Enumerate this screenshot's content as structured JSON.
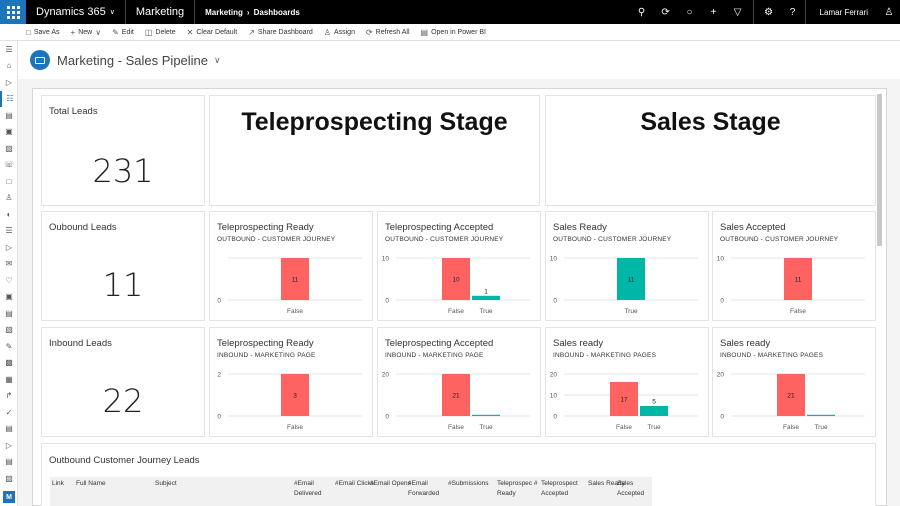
{
  "topbar": {
    "app_name": "Dynamics 365",
    "module": "Marketing",
    "breadcrumb": [
      "Marketing",
      "Dashboards"
    ],
    "user": "Lamar Ferrari"
  },
  "commands": [
    "Save As",
    "New",
    "Edit",
    "Delete",
    "Clear Default",
    "Share Dashboard",
    "Assign",
    "Refresh All",
    "Open in Power BI"
  ],
  "header": {
    "title": "Marketing - Sales Pipeline"
  },
  "tiles": {
    "total_leads": {
      "title": "Total Leads",
      "value": "231"
    },
    "outbound_leads": {
      "title": "Oubound Leads",
      "value": "11"
    },
    "inbound_leads": {
      "title": "Inbound Leads",
      "value": "22"
    },
    "stage_telep": "Teleprospecting Stage",
    "stage_sales": "Sales Stage"
  },
  "grid": {
    "title": "Outbound Customer Journey Leads",
    "columns": [
      "Link",
      "Full Name",
      "Subject",
      "#Email Delivered",
      "#Email Clicks",
      "#Email Opens",
      "#Email Forwarded",
      "#Submissions",
      "Teleprospec # Ready",
      "Teleprospect Accepted",
      "Sales Ready",
      "Sales Accepted"
    ]
  },
  "colors": {
    "red": "#ff6361",
    "teal": "#00b7a7",
    "accent": "#1b75bb"
  },
  "chart_data": [
    {
      "type": "bar",
      "title": "Teleprospecting Ready",
      "subtitle": "OUTBOUND - CUSTOMER JOURNEY",
      "categories": [
        "False"
      ],
      "values": [
        11
      ],
      "colors": [
        "#ff6361"
      ],
      "yticks": [
        "",
        "0"
      ],
      "ylim": [
        0,
        11
      ]
    },
    {
      "type": "bar",
      "title": "Teleprospecting Accepted",
      "subtitle": "OUTBOUND - CUSTOMER JOURNEY",
      "categories": [
        "False",
        "True"
      ],
      "values": [
        10,
        1
      ],
      "colors": [
        "#ff6361",
        "#00b7a7"
      ],
      "yticks": [
        "10",
        "0"
      ],
      "ylim": [
        0,
        10
      ]
    },
    {
      "type": "bar",
      "title": "Sales Ready",
      "subtitle": "OUTBOUND - CUSTOMER JOURNEY",
      "categories": [
        "True"
      ],
      "values": [
        11
      ],
      "colors": [
        "#00b7a7"
      ],
      "yticks": [
        "10",
        "0"
      ],
      "ylim": [
        0,
        11
      ]
    },
    {
      "type": "bar",
      "title": "Sales Accepted",
      "subtitle": "OUTBOUND - CUSTOMER JOURNEY",
      "categories": [
        "False"
      ],
      "values": [
        11
      ],
      "colors": [
        "#ff6361"
      ],
      "yticks": [
        "10",
        "0"
      ],
      "ylim": [
        0,
        11
      ]
    },
    {
      "type": "bar",
      "title": "Teleprospecting Ready",
      "subtitle": "INBOUND - MARKETING PAGE",
      "categories": [
        "False"
      ],
      "values": [
        3
      ],
      "colors": [
        "#ff6361"
      ],
      "yticks": [
        "2",
        "0"
      ],
      "ylim": [
        0,
        3
      ]
    },
    {
      "type": "bar",
      "title": "Teleprospecting Accepted",
      "subtitle": "INBOUND - MARKETING PAGE",
      "categories": [
        "False",
        "True"
      ],
      "values": [
        21,
        0
      ],
      "colors": [
        "#ff6361",
        "#00b7a7"
      ],
      "yticks": [
        "20",
        "0"
      ],
      "ylim": [
        0,
        21
      ]
    },
    {
      "type": "bar",
      "title": "Sales ready",
      "subtitle": "INBOUND - MARKETING PAGES",
      "categories": [
        "False",
        "True"
      ],
      "values": [
        17,
        5
      ],
      "colors": [
        "#ff6361",
        "#00b7a7"
      ],
      "yticks": [
        "20",
        "10",
        "0"
      ],
      "ylim": [
        0,
        21
      ]
    },
    {
      "type": "bar",
      "title": "Sales ready",
      "subtitle": "INBOUND - MARKETING PAGES",
      "categories": [
        "False",
        "True"
      ],
      "values": [
        21,
        0
      ],
      "colors": [
        "#ff6361",
        "#00b7a7"
      ],
      "yticks": [
        "20",
        "0"
      ],
      "ylim": [
        0,
        21
      ]
    }
  ]
}
